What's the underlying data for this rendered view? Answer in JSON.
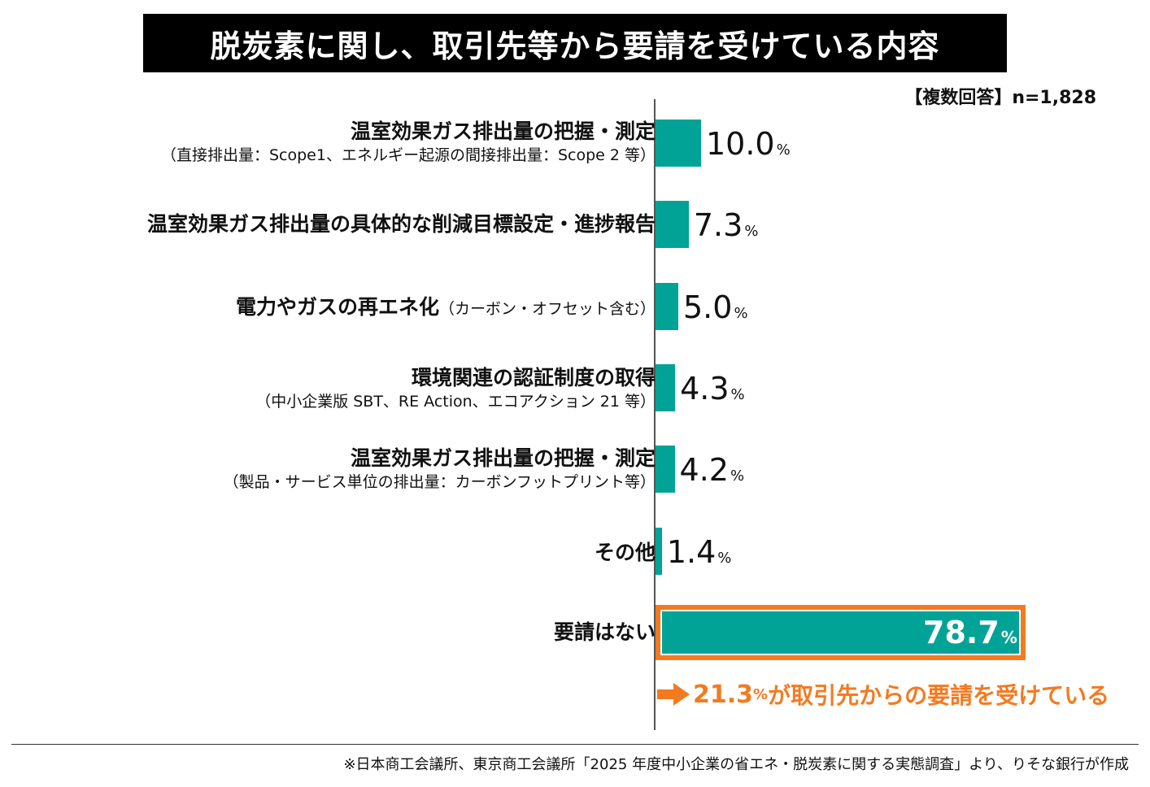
{
  "title": "脱炭素に関し、取引先等から要請を受けている内容",
  "sample_note": "【複数回答】n=1,828",
  "colors": {
    "bar": "#00a396",
    "highlight": "#f47a20",
    "title_bg": "#000000"
  },
  "chart_data": {
    "type": "bar",
    "orientation": "horizontal",
    "categories": [
      "温室効果ガス排出量の把握・測定（直接排出量：Scope1、エネルギー起源の間接排出量：Scope 2 等）",
      "温室効果ガス排出量の具体的な削減目標設定・進捗報告",
      "電力やガスの再エネ化（カーボン・オフセット含む）",
      "環境関連の認証制度の取得（中小企業版 SBT、RE Action、エコアクション 21 等）",
      "温室効果ガス排出量の把握・測定（製品・サービス単位の排出量：カーボンフットプリント等）",
      "その他",
      "要請はない"
    ],
    "values": [
      10.0,
      7.3,
      5.0,
      4.3,
      4.2,
      1.4,
      78.7
    ],
    "unit": "%",
    "xlim": [
      0,
      80
    ],
    "highlight_index": 6
  },
  "bars": [
    {
      "label_main": "温室効果ガス排出量の把握・測定",
      "label_sub": "（直接排出量：Scope1、エネルギー起源の間接排出量：Scope 2 等）",
      "value_text": "10.0",
      "pct": "%"
    },
    {
      "label_main": "温室効果ガス排出量の具体的な削減目標設定・進捗報告",
      "value_text": "7.3",
      "pct": "%"
    },
    {
      "label_main": "電力やガスの再エネ化",
      "label_paren": "（カーボン・オフセット含む）",
      "value_text": "5.0",
      "pct": "%"
    },
    {
      "label_main": "環境関連の認証制度の取得",
      "label_sub": "（中小企業版 SBT、RE Action、エコアクション 21 等）",
      "value_text": "4.3",
      "pct": "%"
    },
    {
      "label_main": "温室効果ガス排出量の把握・測定",
      "label_sub": "（製品・サービス単位の排出量：カーボンフットプリント等）",
      "value_text": "4.2",
      "pct": "%"
    },
    {
      "label_main": "その他",
      "value_text": "1.4",
      "pct": "%"
    },
    {
      "label_main": "要請はない",
      "value_text": "78.7",
      "pct": "%"
    }
  ],
  "callout": {
    "value": "21.3",
    "pct": "%",
    "text": "が取引先からの要請を受けている"
  },
  "footer": "※日本商工会議所、東京商工会議所「2025 年度中小企業の省エネ・脱炭素に関する実態調査」より、りそな銀行が作成"
}
